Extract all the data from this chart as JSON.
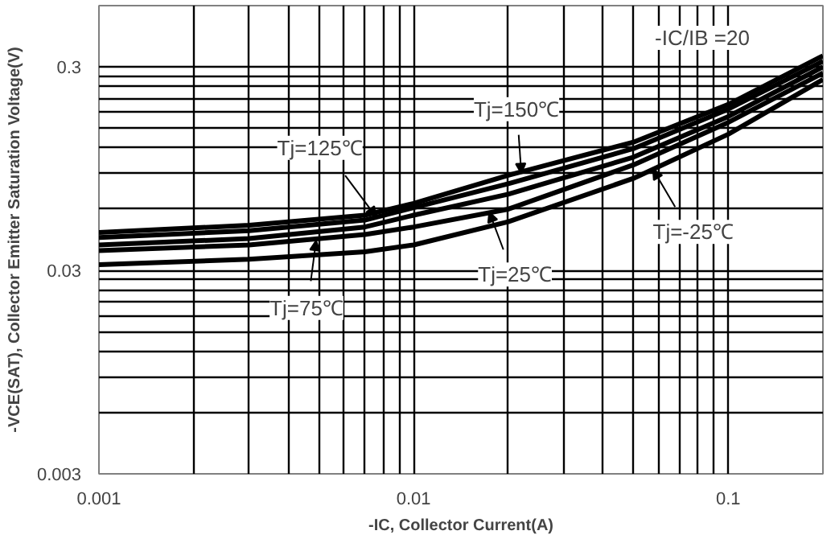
{
  "chart_data": {
    "type": "line",
    "xlabel": "-IC, Collector Current(A)",
    "ylabel": "-VCE(SAT), Collector Emitter Saturation Voltage(V)",
    "log": "xy",
    "grid": true,
    "line_style": "solid",
    "marker": "none",
    "x": [
      0.001,
      0.003,
      0.007,
      0.01,
      0.02,
      0.05,
      0.1,
      0.2
    ],
    "series": [
      {
        "color": "#000000",
        "values": [
          0.046,
          0.05,
          0.056,
          0.064,
          0.088,
          0.128,
          0.196,
          0.34
        ]
      },
      {
        "color": "#000000",
        "values": [
          0.0435,
          0.047,
          0.053,
          0.061,
          0.08,
          0.119,
          0.186,
          0.32
        ]
      },
      {
        "color": "#000000",
        "values": [
          0.04,
          0.043,
          0.049,
          0.056,
          0.071,
          0.108,
          0.171,
          0.3
        ]
      },
      {
        "color": "#000000",
        "values": [
          0.0375,
          0.04,
          0.045,
          0.049,
          0.06,
          0.099,
          0.16,
          0.28
        ]
      },
      {
        "color": "#000000",
        "values": [
          0.032,
          0.034,
          0.037,
          0.04,
          0.052,
          0.085,
          0.14,
          0.26
        ]
      }
    ],
    "annotations": [
      {
        "text": "Tj=125℃",
        "x": 0.0076,
        "y": 0.055
      },
      {
        "text": "Tj=75℃",
        "x": 0.0049,
        "y": 0.042
      },
      {
        "text": "Tj=150℃",
        "x": 0.022,
        "y": 0.09
      },
      {
        "text": "Tj=25℃",
        "x": 0.0174,
        "y": 0.058
      },
      {
        "text": "Tj=-25℃",
        "x": 0.0577,
        "y": 0.094
      },
      "-IC/IB =20"
    ],
    "xlim": [
      0.001,
      0.2
    ],
    "ylim": [
      0.003,
      0.6
    ],
    "xticks": [
      0.001,
      {
        "value": 0.002,
        "label": null
      },
      {
        "value": 0.003,
        "label": null
      },
      {
        "value": 0.004,
        "label": null
      },
      {
        "value": 0.005,
        "label": null
      },
      {
        "value": 0.006,
        "label": null
      },
      {
        "value": 0.007,
        "label": null
      },
      {
        "value": 0.008,
        "label": null
      },
      {
        "value": 0.009,
        "label": null
      },
      0.01,
      {
        "value": 0.02,
        "label": null
      },
      {
        "value": 0.03,
        "label": null
      },
      {
        "value": 0.04,
        "label": null
      },
      {
        "value": 0.05,
        "label": null
      },
      {
        "value": 0.06,
        "label": null
      },
      {
        "value": 0.07,
        "label": null
      },
      {
        "value": 0.08,
        "label": null
      },
      {
        "value": 0.09,
        "label": null
      },
      0.1
    ],
    "yticks": [
      0.003,
      {
        "value": 0.006,
        "label": null
      },
      {
        "value": 0.009,
        "label": null
      },
      {
        "value": 0.012,
        "label": null
      },
      {
        "value": 0.015,
        "label": null
      },
      {
        "value": 0.018,
        "label": null
      },
      {
        "value": 0.021,
        "label": null
      },
      {
        "value": 0.024,
        "label": null
      },
      {
        "value": 0.027,
        "label": null
      },
      0.03,
      {
        "value": 0.06,
        "label": null
      },
      {
        "value": 0.09,
        "label": null
      },
      {
        "value": 0.12,
        "label": null
      },
      {
        "value": 0.15,
        "label": null
      },
      {
        "value": 0.18,
        "label": null
      },
      {
        "value": 0.21,
        "label": null
      },
      {
        "value": 0.24,
        "label": null
      },
      {
        "value": 0.27,
        "label": null
      },
      0.3
    ]
  }
}
